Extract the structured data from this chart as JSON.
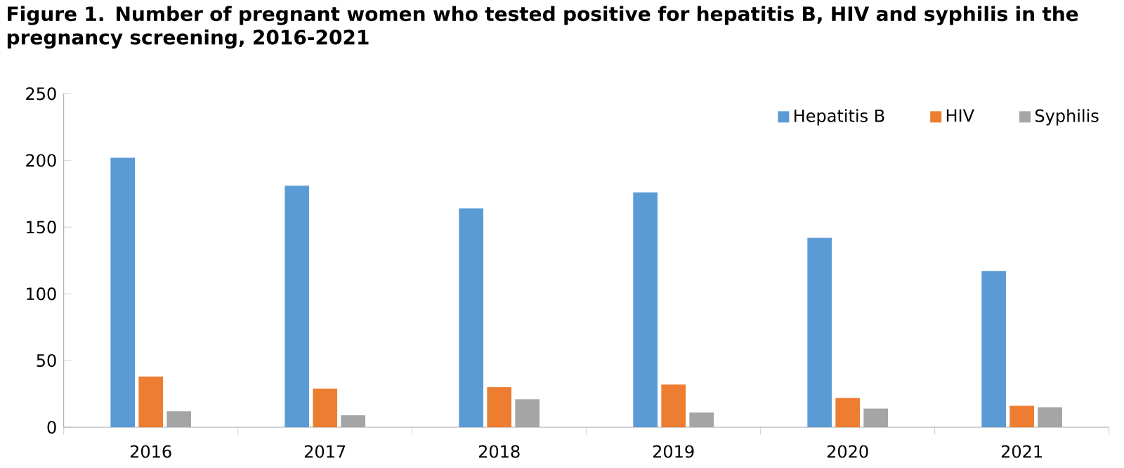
{
  "chart_data": {
    "type": "bar",
    "title": "Figure 1. Number of pregnant women who tested  positive for hepatitis B, HIV and syphilis in the pregnancy screening, 2016-2021",
    "categories": [
      "2016",
      "2017",
      "2018",
      "2019",
      "2020",
      "2021"
    ],
    "series": [
      {
        "name": "Hepatitis B",
        "color": "#5b9bd5",
        "values": [
          202,
          181,
          164,
          176,
          142,
          117
        ]
      },
      {
        "name": "HIV",
        "color": "#ed7d31",
        "values": [
          38,
          29,
          30,
          32,
          22,
          16
        ]
      },
      {
        "name": "Syphilis",
        "color": "#a5a5a5",
        "values": [
          12,
          9,
          21,
          11,
          14,
          15
        ]
      }
    ],
    "ylim": [
      0,
      250
    ],
    "yticks": [
      0,
      50,
      100,
      150,
      200,
      250
    ],
    "grid": false,
    "legend": "top right"
  }
}
